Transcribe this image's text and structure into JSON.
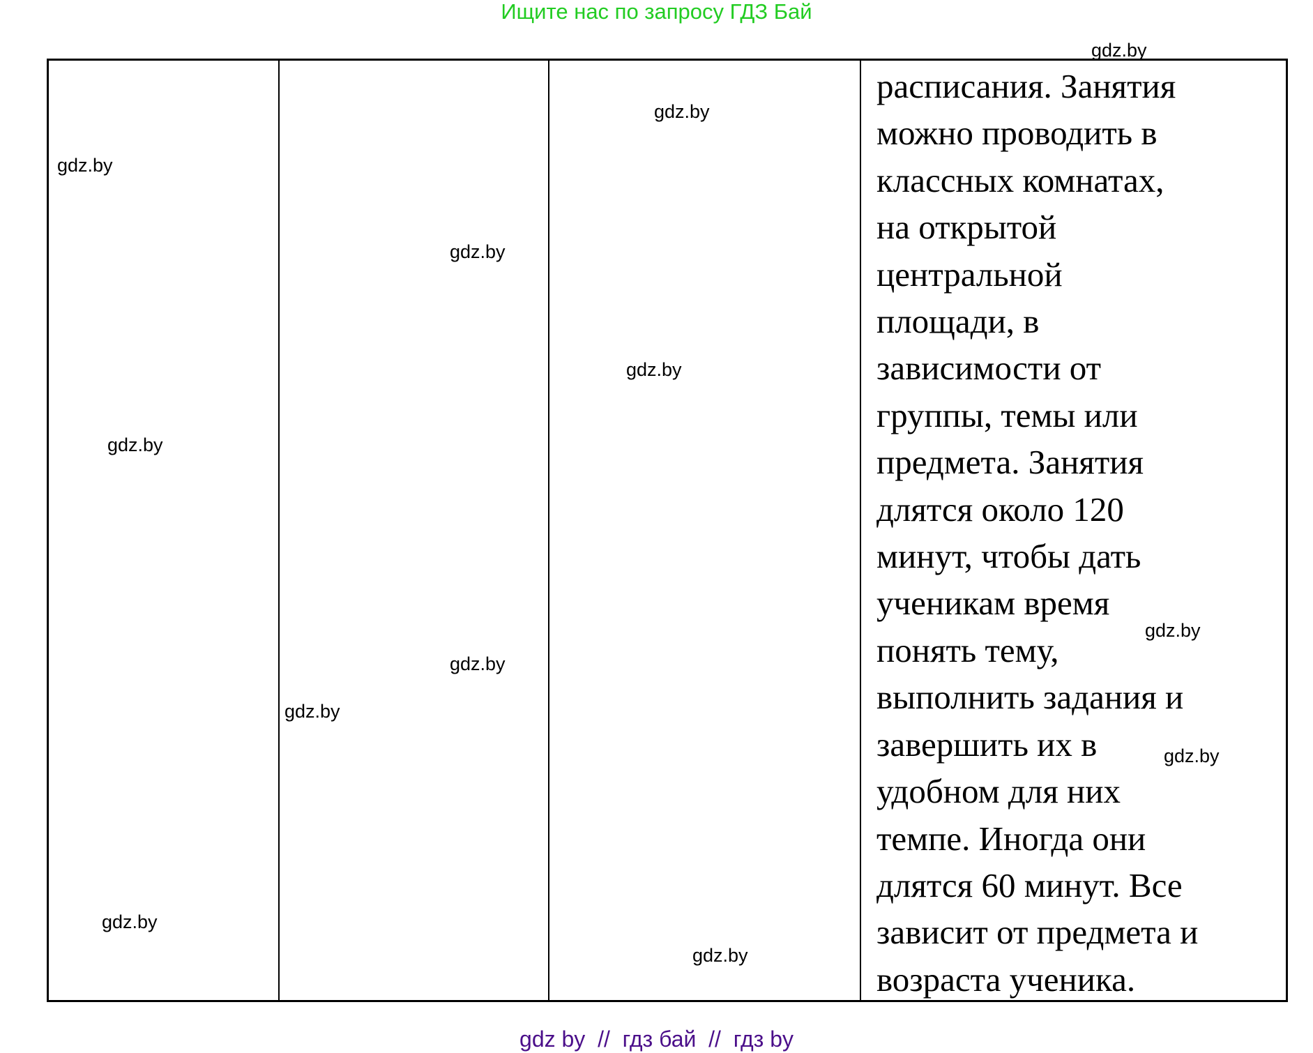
{
  "header": {
    "text": "Ищите нас по запросу ГДЗ Бай"
  },
  "footer": {
    "text": "gdz by  //  гдз бай  //  гдз by"
  },
  "table": {
    "cell_lines": [
      "расписания. Занятия",
      "можно проводить в",
      "классных комнатах,",
      "на открытой",
      "центральной",
      "площади, в",
      "зависимости от",
      "группы, темы или",
      "предмета. Занятия",
      "длятся около 120",
      "минут, чтобы дать",
      "ученикам время",
      "понять тему,",
      "выполнить задания и",
      "завершить их в",
      "удобном для них",
      "темпе. Иногда они",
      "длятся 60 минут. Все",
      "зависит от предмета и",
      "возраста ученика."
    ]
  },
  "watermark": "gdz.by",
  "colors": {
    "header": "#22cc22",
    "footer": "#4b0f8a"
  }
}
